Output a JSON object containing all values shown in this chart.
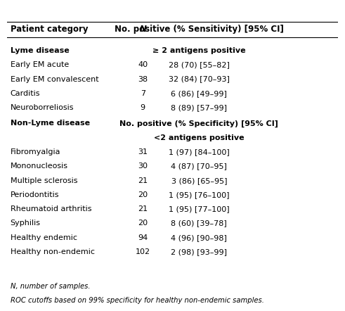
{
  "header": [
    "Patient category",
    "N",
    "No. positive (% Sensitivity) [95% CI]"
  ],
  "section1_label": "Lyme disease",
  "section1_sublabel": "≥ 2 antigens positive",
  "section1_rows": [
    [
      "Early EM acute",
      "40",
      "28 (70) [55–82]"
    ],
    [
      "Early EM convalescent",
      "38",
      "32 (84) [70–93]"
    ],
    [
      "Carditis",
      "7",
      "6 (86) [49–99]"
    ],
    [
      "Neuroborreliosis",
      "9",
      "8 (89) [57–99]"
    ]
  ],
  "section2_label": "Non-Lyme disease",
  "section2_sublabel1": "No. positive (% Specificity) [95% CI]",
  "section2_sublabel2": "<2 antigens positive",
  "section2_rows": [
    [
      "Fibromyalgia",
      "31",
      "1 (97) [84–100]"
    ],
    [
      "Mononucleosis",
      "30",
      "4 (87) [70–95]"
    ],
    [
      "Multiple sclerosis",
      "21",
      "3 (86) [65–95]"
    ],
    [
      "Periodontitis",
      "20",
      "1 (95) [76–100]"
    ],
    [
      "Rheumatoid arthritis",
      "21",
      "1 (95) [77–100]"
    ],
    [
      "Syphilis",
      "20",
      "8 (60) [39–78]"
    ],
    [
      "Healthy endemic",
      "94",
      "4 (96) [90–98]"
    ],
    [
      "Healthy non-endemic",
      "102",
      "2 (98) [93–99]"
    ]
  ],
  "footnotes": [
    "N, number of samples.",
    "ROC cutoffs based on 99% specificity for healthy non-endemic samples."
  ],
  "bg_color": "#ffffff",
  "header_line_color": "#000000",
  "text_color": "#000000",
  "bold_color": "#000000"
}
